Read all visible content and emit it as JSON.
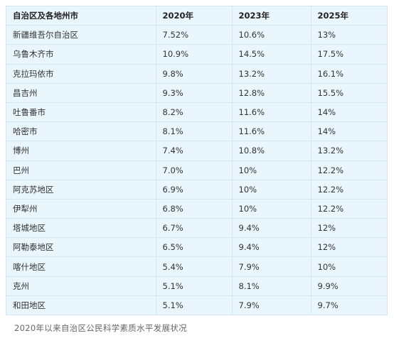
{
  "table": {
    "headers": [
      "自治区及各地州市",
      "2020年",
      "2023年",
      "2025年"
    ],
    "rows": [
      [
        "新疆维吾尔自治区",
        "7.52%",
        "10.6%",
        "13%"
      ],
      [
        "乌鲁木齐市",
        "10.9%",
        "14.5%",
        "17.5%"
      ],
      [
        "克拉玛依市",
        "9.8%",
        "13.2%",
        "16.1%"
      ],
      [
        "昌吉州",
        "9.3%",
        "12.8%",
        "15.5%"
      ],
      [
        "吐鲁番市",
        "8.2%",
        "11.6%",
        "14%"
      ],
      [
        "哈密市",
        "8.1%",
        "11.6%",
        "14%"
      ],
      [
        "博州",
        "7.4%",
        "10.8%",
        "13.2%"
      ],
      [
        "巴州",
        "7.0%",
        "10%",
        "12.2%"
      ],
      [
        "阿克苏地区",
        "6.9%",
        "10%",
        "12.2%"
      ],
      [
        "伊犁州",
        "6.8%",
        "10%",
        "12.2%"
      ],
      [
        "塔城地区",
        "6.7%",
        "9.4%",
        "12%"
      ],
      [
        "阿勒泰地区",
        "6.5%",
        "9.4%",
        "12%"
      ],
      [
        "喀什地区",
        "5.4%",
        "7.9%",
        "10%"
      ],
      [
        "克州",
        "5.1%",
        "8.1%",
        "9.9%"
      ],
      [
        "和田地区",
        "5.1%",
        "7.9%",
        "9.7%"
      ]
    ]
  },
  "caption": "2020年以来自治区公民科学素质水平发展状况",
  "colors": {
    "table_background": "#eaf6fd",
    "grid_line": "#d3e6f3",
    "text": "#333333",
    "caption_text": "#666666"
  }
}
